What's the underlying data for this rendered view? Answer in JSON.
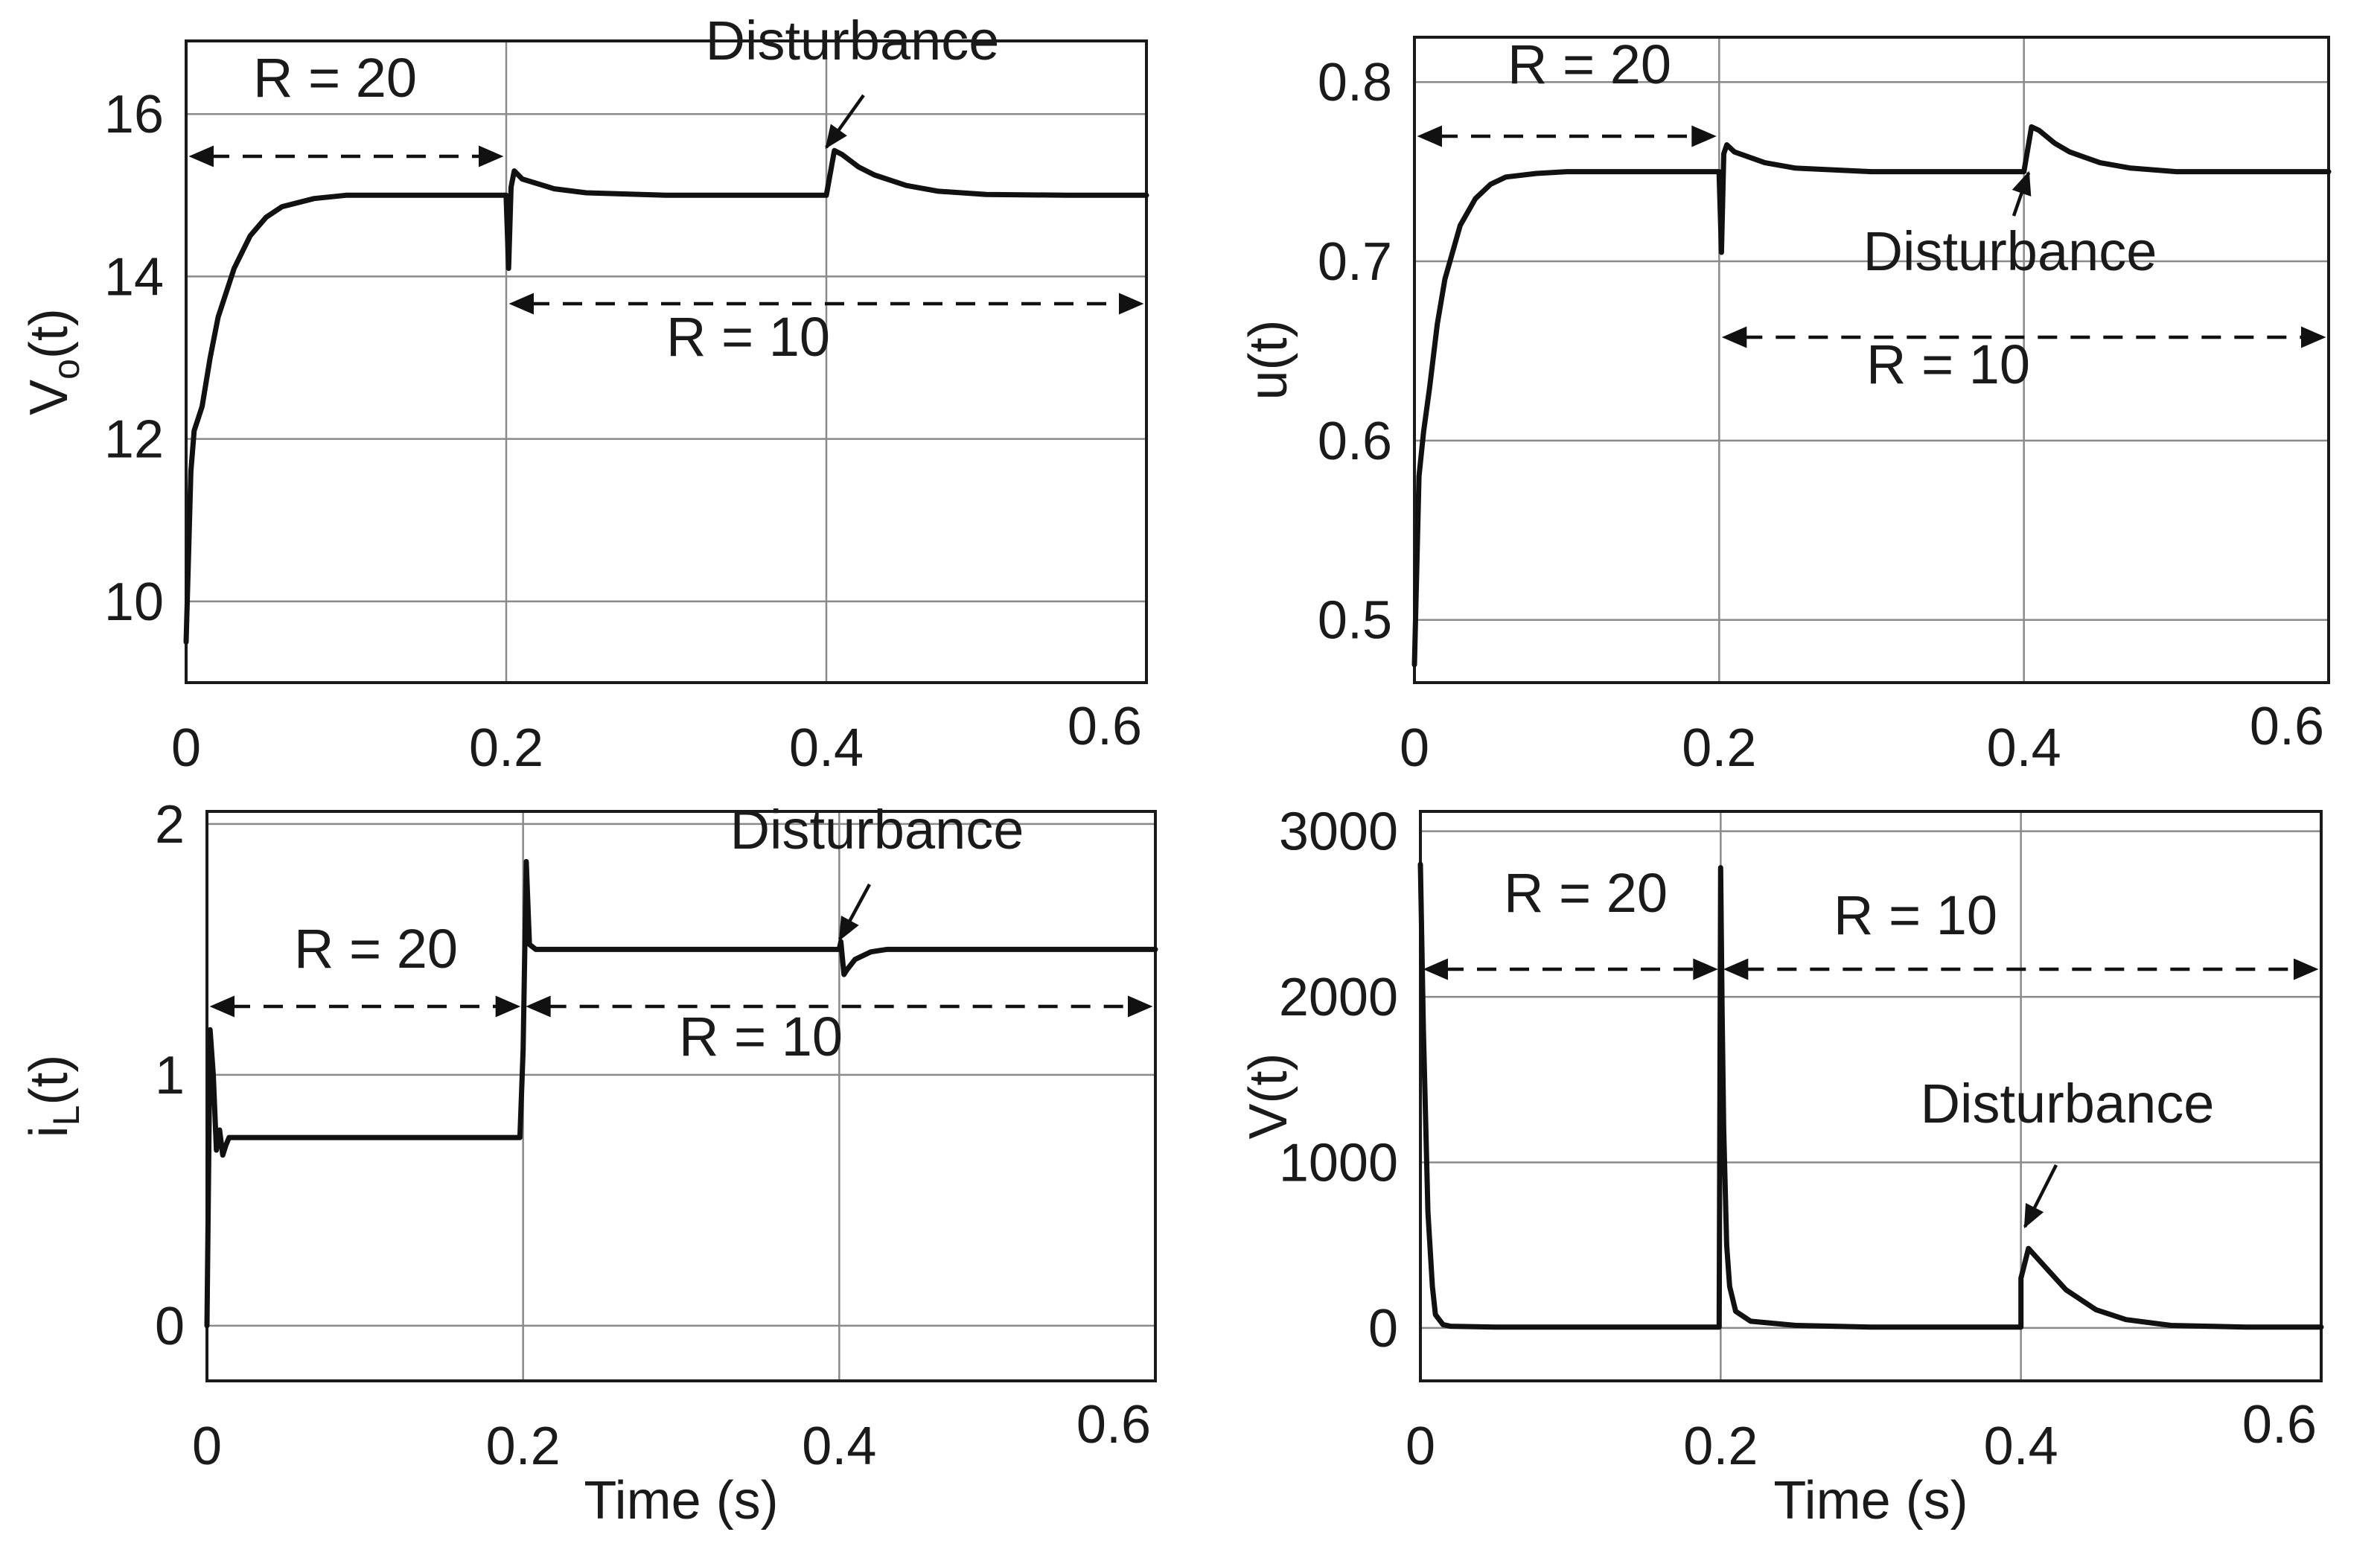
{
  "chart_data": [
    {
      "type": "line",
      "panel": "top-left",
      "ylabel": "V",
      "ylabel_sub": "o",
      "ylabel_suffix": "(t)",
      "xlabel": "",
      "xlim": [
        0,
        0.6
      ],
      "ylim": [
        9.0,
        16.9
      ],
      "xticks": [
        0,
        0.2,
        0.4,
        0.6
      ],
      "xticklabels": [
        "0",
        "0.2",
        "0.4",
        "0.6"
      ],
      "yticks": [
        10,
        12,
        14,
        16
      ],
      "yticklabels": [
        "10",
        "12",
        "14",
        "16"
      ],
      "grid": true,
      "series": [
        {
          "name": "V_o(t)",
          "x": [
            0,
            0.003,
            0.005,
            0.01,
            0.015,
            0.02,
            0.03,
            0.04,
            0.05,
            0.06,
            0.08,
            0.1,
            0.14,
            0.2,
            0.2,
            0.2015,
            0.203,
            0.205,
            0.21,
            0.23,
            0.25,
            0.3,
            0.35,
            0.4,
            0.4,
            0.405,
            0.41,
            0.42,
            0.43,
            0.45,
            0.47,
            0.5,
            0.55,
            0.6
          ],
          "y": [
            9.5,
            11.6,
            12.1,
            12.4,
            13.0,
            13.5,
            14.1,
            14.5,
            14.73,
            14.86,
            14.96,
            15.0,
            15.0,
            15.0,
            14.95,
            14.1,
            15.1,
            15.3,
            15.2,
            15.08,
            15.03,
            15.0,
            15.0,
            15.0,
            15.0,
            15.55,
            15.5,
            15.35,
            15.25,
            15.12,
            15.05,
            15.01,
            15.0,
            15.0
          ]
        }
      ],
      "annotations": [
        {
          "text": "R = 20",
          "x_from": 0,
          "x_to": 0.2,
          "y": 15.5
        },
        {
          "text": "R = 10",
          "x_from": 0.2,
          "x_to": 0.6,
          "y": 13.7
        },
        {
          "text": "Disturbance",
          "x": 0.4,
          "y": 15.55
        }
      ]
    },
    {
      "type": "line",
      "panel": "top-right",
      "ylabel": "u(t)",
      "xlabel": "",
      "xlim": [
        0,
        0.6
      ],
      "ylim": [
        0.465,
        0.825
      ],
      "xticks": [
        0,
        0.2,
        0.4,
        0.6
      ],
      "xticklabels": [
        "0",
        "0.2",
        "0.4",
        "0.6"
      ],
      "yticks": [
        0.5,
        0.6,
        0.7,
        0.8
      ],
      "yticklabels": [
        "0.5",
        "0.6",
        "0.7",
        "0.8"
      ],
      "grid": true,
      "series": [
        {
          "name": "u(t)",
          "x": [
            0,
            0.003,
            0.006,
            0.01,
            0.015,
            0.02,
            0.03,
            0.04,
            0.05,
            0.06,
            0.08,
            0.1,
            0.15,
            0.2,
            0.2,
            0.2015,
            0.203,
            0.205,
            0.21,
            0.23,
            0.25,
            0.3,
            0.4,
            0.4,
            0.405,
            0.41,
            0.42,
            0.43,
            0.45,
            0.47,
            0.5,
            0.55,
            0.6
          ],
          "y": [
            0.475,
            0.58,
            0.605,
            0.63,
            0.665,
            0.69,
            0.72,
            0.735,
            0.743,
            0.747,
            0.749,
            0.75,
            0.75,
            0.75,
            0.748,
            0.705,
            0.76,
            0.765,
            0.761,
            0.755,
            0.752,
            0.75,
            0.75,
            0.75,
            0.775,
            0.773,
            0.766,
            0.761,
            0.755,
            0.752,
            0.75,
            0.75,
            0.75
          ]
        }
      ],
      "annotations": [
        {
          "text": "R = 20",
          "x_from": 0,
          "x_to": 0.2,
          "y": 0.768
        },
        {
          "text": "R = 10",
          "x_from": 0.2,
          "x_to": 0.6,
          "y": 0.655
        },
        {
          "text": "Disturbance",
          "x": 0.4,
          "y": 0.755
        }
      ]
    },
    {
      "type": "line",
      "panel": "bottom-left",
      "ylabel": "i",
      "ylabel_sub": "L",
      "ylabel_suffix": "(t)",
      "xlabel": "Time (s)",
      "xlim": [
        0,
        0.6
      ],
      "ylim": [
        -0.22,
        2.05
      ],
      "xticks": [
        0,
        0.2,
        0.4,
        0.6
      ],
      "xticklabels": [
        "0",
        "0.2",
        "0.4",
        "0.6"
      ],
      "yticks": [
        0,
        1,
        2
      ],
      "yticklabels": [
        "0",
        "1",
        "2"
      ],
      "grid": true,
      "series": [
        {
          "name": "i_L(t)",
          "x": [
            0,
            0.002,
            0.004,
            0.006,
            0.008,
            0.01,
            0.012,
            0.014,
            0.016,
            0.02,
            0.05,
            0.1,
            0.15,
            0.198,
            0.2,
            0.202,
            0.204,
            0.206,
            0.208,
            0.21,
            0.25,
            0.3,
            0.35,
            0.398,
            0.4,
            0.401,
            0.403,
            0.405,
            0.41,
            0.42,
            0.43,
            0.45,
            0.5,
            0.55,
            0.6
          ],
          "y": [
            0,
            1.18,
            1.0,
            0.7,
            0.78,
            0.68,
            0.72,
            0.75,
            0.75,
            0.75,
            0.75,
            0.75,
            0.75,
            0.75,
            1.1,
            1.85,
            1.52,
            1.51,
            1.5,
            1.5,
            1.5,
            1.5,
            1.5,
            1.5,
            1.5,
            1.53,
            1.4,
            1.42,
            1.46,
            1.49,
            1.5,
            1.5,
            1.5,
            1.5,
            1.5
          ]
        }
      ],
      "annotations": [
        {
          "text": "R = 20",
          "x_from": 0,
          "x_to": 0.2,
          "y": 1.32
        },
        {
          "text": "R = 10",
          "x_from": 0.2,
          "x_to": 0.6,
          "y": 1.3
        },
        {
          "text": "Disturbance",
          "x": 0.4,
          "y": 1.55
        }
      ]
    },
    {
      "type": "line",
      "panel": "bottom-right",
      "ylabel": "V(t)",
      "xlabel": "Time (s)",
      "xlim": [
        0,
        0.6
      ],
      "ylim": [
        -320,
        3120
      ],
      "xticks": [
        0,
        0.2,
        0.4,
        0.6
      ],
      "xticklabels": [
        "0",
        "0.2",
        "0.4",
        "0.6"
      ],
      "yticks": [
        0,
        1000,
        2000,
        3000
      ],
      "yticklabels": [
        "0",
        "1000",
        "2000",
        "3000"
      ],
      "grid": true,
      "series": [
        {
          "name": "V(t)",
          "x": [
            0,
            0.002,
            0.005,
            0.008,
            0.01,
            0.015,
            0.02,
            0.05,
            0.1,
            0.15,
            0.199,
            0.2,
            0.201,
            0.202,
            0.204,
            0.206,
            0.21,
            0.22,
            0.25,
            0.3,
            0.35,
            0.399,
            0.4,
            0.4,
            0.405,
            0.41,
            0.42,
            0.43,
            0.45,
            0.47,
            0.5,
            0.55,
            0.6
          ],
          "y": [
            2800,
            1800,
            700,
            250,
            80,
            20,
            10,
            5,
            5,
            5,
            5,
            2780,
            1900,
            1200,
            500,
            250,
            100,
            40,
            15,
            5,
            5,
            5,
            5,
            300,
            480,
            430,
            330,
            230,
            110,
            50,
            15,
            5,
            5
          ]
        }
      ],
      "annotations": [
        {
          "text": "R = 20",
          "x_from": 0,
          "x_to": 0.2,
          "y": 2180
        },
        {
          "text": "R = 10",
          "x_from": 0.2,
          "x_to": 0.6,
          "y": 2180
        },
        {
          "text": "Disturbance",
          "x": 0.4,
          "y": 520
        }
      ]
    }
  ]
}
